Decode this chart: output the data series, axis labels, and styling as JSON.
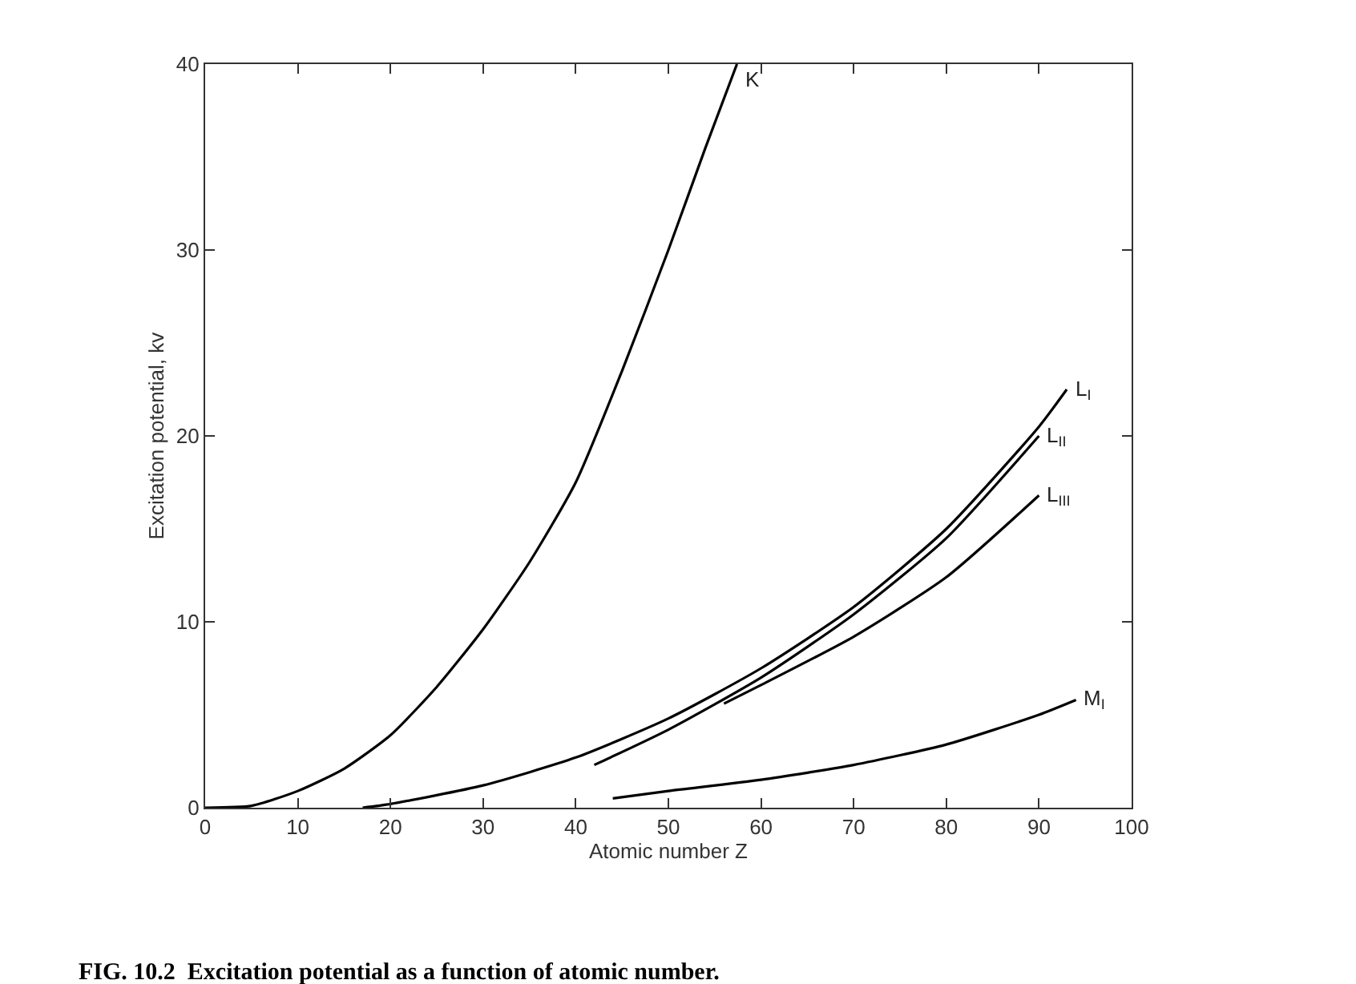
{
  "chart_data": {
    "type": "line",
    "xlabel": "Atomic number Z",
    "ylabel": "Excitation potential, kv",
    "annotations": [
      "FIG. 10.2  Excitation potential as a function of atomic number."
    ],
    "xlim": [
      0,
      100
    ],
    "xticks": [
      0,
      10,
      20,
      30,
      40,
      50,
      60,
      70,
      80,
      90,
      100
    ],
    "ylim": [
      0,
      40
    ],
    "yticks": [
      0,
      10,
      20,
      30,
      40
    ],
    "legend": false,
    "marker": "none",
    "line_style": "solid",
    "series": [
      {
        "name": "K",
        "color": "#000000",
        "x": [
          0,
          5,
          10,
          15,
          20,
          25,
          30,
          35,
          40,
          45,
          50,
          54,
          57.4
        ],
        "values": [
          0,
          0.1,
          0.9,
          2.1,
          3.9,
          6.5,
          9.6,
          13.2,
          17.5,
          23.5,
          30,
          35.5,
          40
        ]
      },
      {
        "name": "L$_{I}$",
        "color": "#000000",
        "x": [
          17,
          20,
          30,
          40,
          50,
          60,
          70,
          80,
          90,
          93
        ],
        "values": [
          0,
          0.2,
          1.2,
          2.7,
          4.8,
          7.5,
          10.8,
          15,
          20.5,
          22.5
        ]
      },
      {
        "name": "L$_{II}$",
        "color": "#000000",
        "x": [
          42,
          50,
          60,
          70,
          80,
          90
        ],
        "values": [
          2.3,
          4.2,
          7,
          10.4,
          14.5,
          20
        ]
      },
      {
        "name": "L$_{III}$",
        "color": "#000000",
        "x": [
          56,
          60,
          70,
          80,
          90
        ],
        "values": [
          5.6,
          6.6,
          9.2,
          12.4,
          16.8
        ]
      },
      {
        "name": "M$_{I}$",
        "color": "#000000",
        "x": [
          44,
          50,
          60,
          70,
          80,
          90,
          94
        ],
        "values": [
          0.5,
          0.9,
          1.5,
          2.3,
          3.4,
          5,
          5.8
        ]
      }
    ]
  }
}
